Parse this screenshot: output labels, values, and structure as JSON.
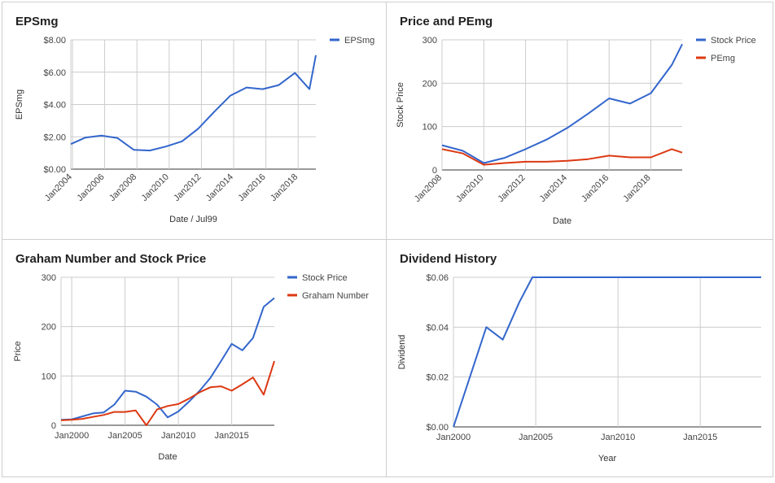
{
  "colors": {
    "blue": "#3366cc",
    "red": "#dc3912",
    "grid": "#cccccc",
    "axis": "#333333"
  },
  "chart_data": [
    {
      "type": "line",
      "title": "EPSmg",
      "xlabel": "Date / Jul99",
      "ylabel": "EPSmg",
      "x_ticks": [
        "Jan2004",
        "Jan2006",
        "Jan2008",
        "Jan2010",
        "Jan2012",
        "Jan2014",
        "Jan2016",
        "Jan2018"
      ],
      "y_ticks": [
        "$0.00",
        "$2.00",
        "$4.00",
        "$6.00",
        "$8.00"
      ],
      "xlim": [
        2003.9,
        2019.1
      ],
      "ylim": [
        0,
        8
      ],
      "legend_position": "top-right",
      "grid": true,
      "series": [
        {
          "name": "EPSmg",
          "color": "#3366cc",
          "points": [
            [
              2003.9,
              1.55
            ],
            [
              2004.8,
              1.95
            ],
            [
              2005.8,
              2.08
            ],
            [
              2006.8,
              1.92
            ],
            [
              2007.8,
              1.2
            ],
            [
              2008.8,
              1.15
            ],
            [
              2009.8,
              1.4
            ],
            [
              2010.8,
              1.72
            ],
            [
              2011.8,
              2.5
            ],
            [
              2012.8,
              3.55
            ],
            [
              2013.8,
              4.55
            ],
            [
              2014.8,
              5.05
            ],
            [
              2015.8,
              4.95
            ],
            [
              2016.8,
              5.2
            ],
            [
              2017.8,
              5.95
            ],
            [
              2018.7,
              4.95
            ],
            [
              2019.1,
              7.05
            ]
          ]
        }
      ]
    },
    {
      "type": "line",
      "title": "Price and PEmg",
      "xlabel": "Date",
      "ylabel": "Stock Price",
      "x_ticks": [
        "Jan2008",
        "Jan2010",
        "Jan2012",
        "Jan2014",
        "Jan2016",
        "Jan2018"
      ],
      "y_ticks": [
        "0",
        "100",
        "200",
        "300"
      ],
      "xlim": [
        2008,
        2019.5
      ],
      "ylim": [
        0,
        300
      ],
      "legend_position": "top-right",
      "grid": true,
      "series": [
        {
          "name": "Stock Price",
          "color": "#3366cc",
          "points": [
            [
              2008,
              57
            ],
            [
              2009,
              44
            ],
            [
              2010,
              16
            ],
            [
              2011,
              28
            ],
            [
              2012,
              48
            ],
            [
              2013,
              70
            ],
            [
              2014,
              97
            ],
            [
              2015,
              130
            ],
            [
              2016,
              165
            ],
            [
              2017,
              153
            ],
            [
              2018,
              177
            ],
            [
              2019,
              242
            ],
            [
              2019.5,
              290
            ]
          ]
        },
        {
          "name": "PEmg",
          "color": "#dc3912",
          "points": [
            [
              2008,
              48
            ],
            [
              2009,
              38
            ],
            [
              2010,
              12
            ],
            [
              2011,
              16
            ],
            [
              2012,
              19
            ],
            [
              2013,
              19
            ],
            [
              2014,
              21
            ],
            [
              2015,
              25
            ],
            [
              2016,
              33
            ],
            [
              2017,
              29
            ],
            [
              2018,
              29
            ],
            [
              2019,
              48
            ],
            [
              2019.5,
              40
            ]
          ]
        }
      ]
    },
    {
      "type": "line",
      "title": "Graham Number and Stock Price",
      "xlabel": "Date",
      "ylabel": "Price",
      "x_ticks": [
        "Jan2000",
        "Jan2005",
        "Jan2010",
        "Jan2015"
      ],
      "y_ticks": [
        "0",
        "100",
        "200",
        "300"
      ],
      "xlim": [
        1999,
        2019
      ],
      "ylim": [
        0,
        300
      ],
      "legend_position": "top-right",
      "grid": true,
      "series": [
        {
          "name": "Stock Price",
          "color": "#3366cc",
          "points": [
            [
              1999,
              11
            ],
            [
              2000,
              12
            ],
            [
              2001,
              18
            ],
            [
              2002,
              24
            ],
            [
              2003,
              26
            ],
            [
              2004,
              42
            ],
            [
              2005,
              70
            ],
            [
              2006,
              68
            ],
            [
              2007,
              58
            ],
            [
              2008,
              42
            ],
            [
              2009,
              16
            ],
            [
              2010,
              28
            ],
            [
              2011,
              48
            ],
            [
              2012,
              70
            ],
            [
              2013,
              96
            ],
            [
              2014,
              130
            ],
            [
              2015,
              165
            ],
            [
              2016,
              152
            ],
            [
              2017,
              177
            ],
            [
              2018,
              240
            ],
            [
              2019,
              258
            ]
          ]
        },
        {
          "name": "Graham Number",
          "color": "#dc3912",
          "points": [
            [
              1999,
              10
            ],
            [
              2000,
              11
            ],
            [
              2001,
              13
            ],
            [
              2002,
              17
            ],
            [
              2003,
              21
            ],
            [
              2004,
              27
            ],
            [
              2005,
              27
            ],
            [
              2006,
              30
            ],
            [
              2007,
              0
            ],
            [
              2008,
              32
            ],
            [
              2009,
              39
            ],
            [
              2010,
              43
            ],
            [
              2011,
              54
            ],
            [
              2012,
              67
            ],
            [
              2013,
              77
            ],
            [
              2014,
              79
            ],
            [
              2015,
              70
            ],
            [
              2016,
              83
            ],
            [
              2017,
              97
            ],
            [
              2018,
              62
            ],
            [
              2019,
              130
            ]
          ]
        }
      ]
    },
    {
      "type": "line",
      "title": "Dividend History",
      "xlabel": "Year",
      "ylabel": "Dividend",
      "x_ticks": [
        "Jan2000",
        "Jan2005",
        "Jan2010",
        "Jan2015"
      ],
      "y_ticks": [
        "$0.00",
        "$0.02",
        "$0.04",
        "$0.06"
      ],
      "xlim": [
        2000,
        2018.7
      ],
      "ylim": [
        0,
        0.06
      ],
      "legend_position": "none",
      "grid": true,
      "series": [
        {
          "name": "",
          "color": "#3366cc",
          "points": [
            [
              2000,
              0.0
            ],
            [
              2001,
              0.02
            ],
            [
              2002,
              0.04
            ],
            [
              2003,
              0.035
            ],
            [
              2004,
              0.05
            ],
            [
              2004.8,
              0.06
            ],
            [
              2018.7,
              0.06
            ]
          ]
        }
      ]
    }
  ]
}
